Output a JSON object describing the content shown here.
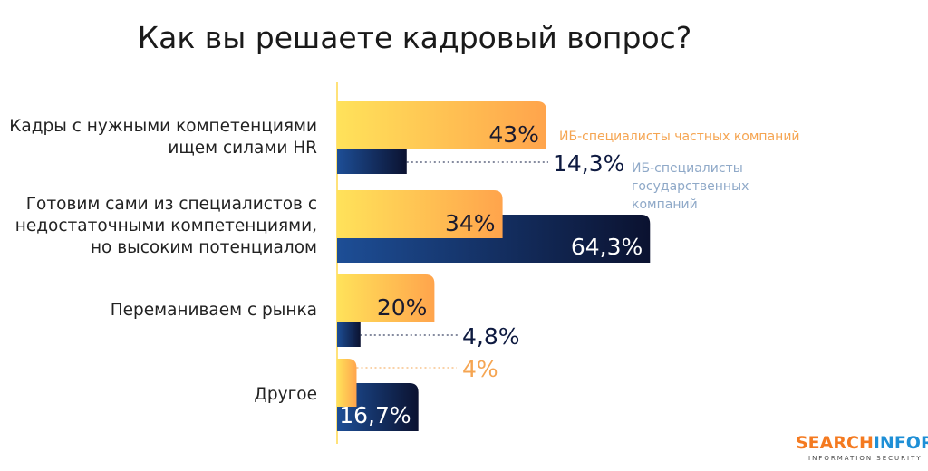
{
  "chart_data": {
    "type": "bar",
    "orientation": "horizontal",
    "title": "Как вы решаете кадровый вопрос?",
    "categories": [
      "Кадры с нужными компетенциями\nищем силами HR",
      "Готовим сами из специалистов с\nнедостаточными компетенциями,\nно высоким потенциалом",
      "Переманиваем с рынка",
      "Другое"
    ],
    "series": [
      {
        "name": "ИБ-специалисты частных компаний",
        "values": [
          43,
          34,
          20,
          4
        ],
        "labels": [
          "43%",
          "34%",
          "20%",
          "4%"
        ],
        "color": "#FFA94D"
      },
      {
        "name": "ИБ-специалисты государственных компаний",
        "values": [
          14.3,
          64.3,
          4.8,
          16.7
        ],
        "labels": [
          "14,3%",
          "64,3%",
          "4,8%",
          "16,7%"
        ],
        "color": "#1B3F7A"
      }
    ],
    "legend_colors": {
      "private": "#F5A552",
      "state": "#8FA9C8"
    },
    "xlim": [
      0,
      100
    ]
  },
  "logo": {
    "part1": "SEARCH",
    "part2": "INFORM",
    "tagline": "INFORMATION SECURITY"
  }
}
